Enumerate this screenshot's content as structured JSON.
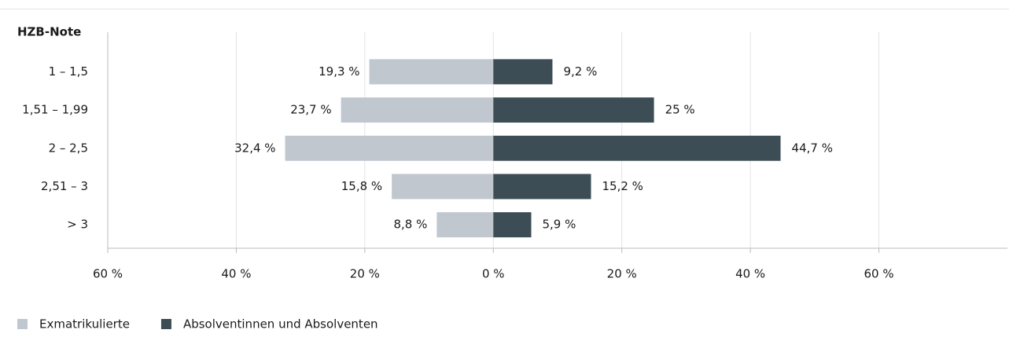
{
  "chart_data": {
    "type": "diverging_bar",
    "y_label": "HZB-Note",
    "categories": [
      "1 – 1,5",
      "1,51 – 1,99",
      "2 – 2,5",
      "2,51 – 3",
      "> 3"
    ],
    "series": [
      {
        "name": "Exmatrikulierte",
        "color": "#c0c7cf",
        "values": [
          -19.3,
          -23.7,
          -32.4,
          -15.8,
          -8.8
        ],
        "value_labels": [
          "19,3 %",
          "23,7 %",
          "32,4 %",
          "15,8 %",
          "8,8 %"
        ]
      },
      {
        "name": "Absolventinnen und Absolventen",
        "color": "#3d4d56",
        "values": [
          9.2,
          25,
          44.7,
          15.2,
          5.9
        ],
        "value_labels": [
          "9,2 %",
          "25 %",
          "44,7 %",
          "15,2 %",
          "5,9 %"
        ]
      }
    ],
    "xlim": [
      -60,
      80
    ],
    "xticks": [
      {
        "value": -60,
        "label": "60 %"
      },
      {
        "value": -40,
        "label": "40 %"
      },
      {
        "value": -20,
        "label": "20 %"
      },
      {
        "value": 0,
        "label": "0 %"
      },
      {
        "value": 20,
        "label": "20 %"
      },
      {
        "value": 40,
        "label": "40 %"
      },
      {
        "value": 60,
        "label": "60 %"
      }
    ],
    "grid": true
  }
}
